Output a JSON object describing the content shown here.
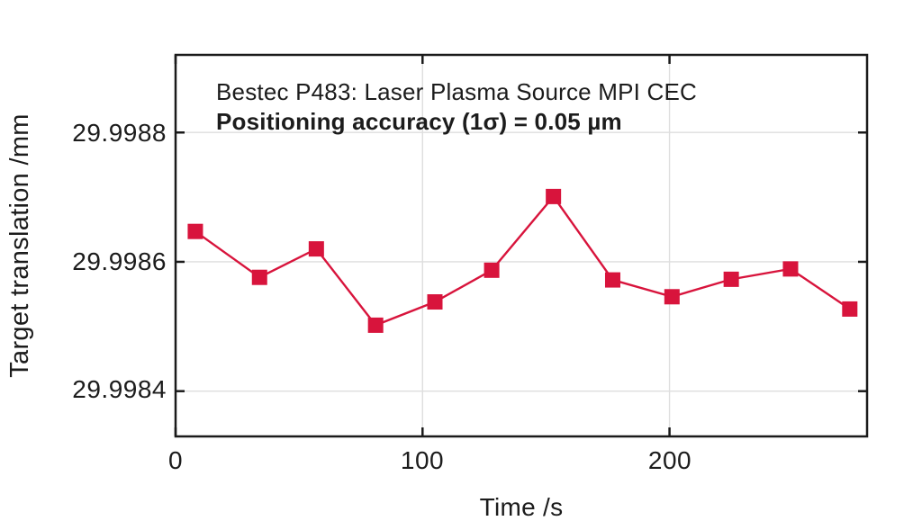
{
  "chart_data": {
    "type": "line",
    "marker": "square",
    "title": "Bestec P483: Laser Plasma Source MPI CEC",
    "subtitle": "Positioning accuracy (1σ) = 0.05 µm",
    "xlabel": "Time /s",
    "ylabel": "Target translation /mm",
    "x": [
      8,
      34,
      57,
      81,
      105,
      128,
      153,
      177,
      201,
      225,
      249,
      273
    ],
    "y": [
      29.998647,
      29.998576,
      29.99862,
      29.998502,
      29.998538,
      29.998587,
      29.998701,
      29.998572,
      29.998546,
      29.998573,
      29.998589,
      29.998527
    ],
    "xlim": [
      0,
      280
    ],
    "ylim": [
      29.99833,
      29.99892
    ],
    "x_ticks": [
      0,
      100,
      200
    ],
    "x_tick_labels": [
      "0",
      "100",
      "200"
    ],
    "y_ticks": [
      29.9984,
      29.9986,
      29.9988
    ],
    "y_tick_labels": [
      "29.9984",
      "29.9986",
      "29.9988"
    ],
    "grid": true,
    "legend": "none",
    "colors": {
      "series": "#d8143c",
      "grid": "#dedede",
      "axis": "#1a1a1a",
      "text": "#1c1c1c",
      "background": "#ffffff"
    }
  }
}
